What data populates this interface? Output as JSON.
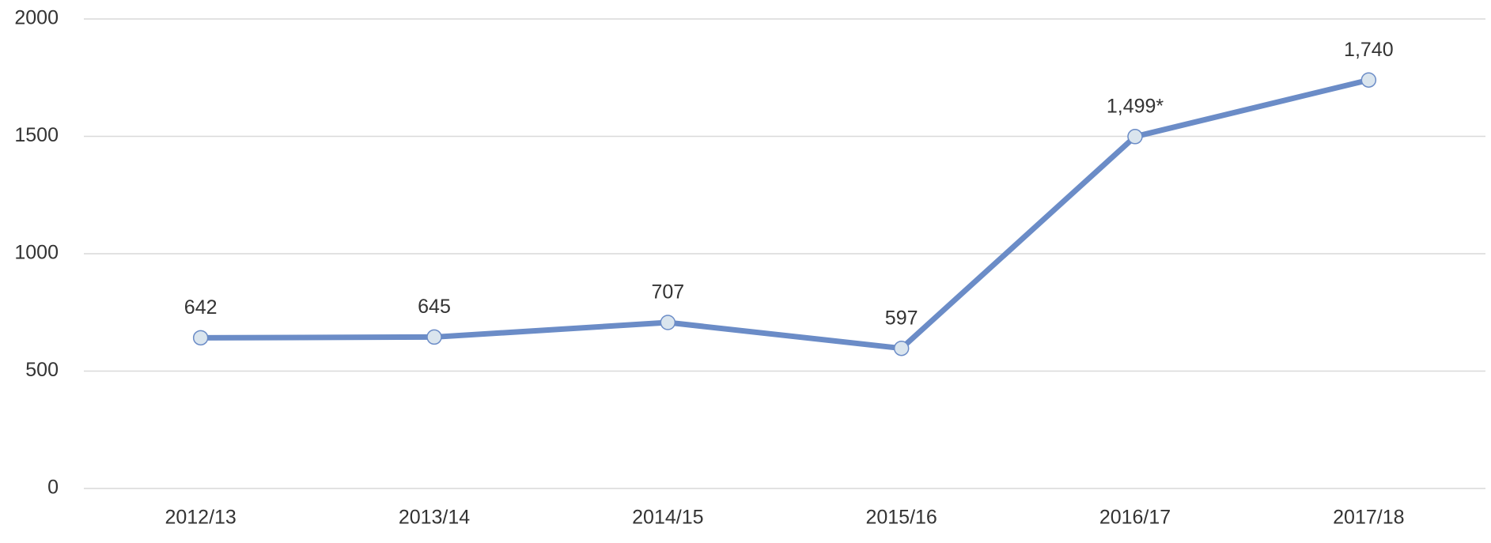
{
  "chart_data": {
    "type": "line",
    "categories": [
      "2012/13",
      "2013/14",
      "2014/15",
      "2015/16",
      "2016/17",
      "2017/18"
    ],
    "values": [
      642,
      645,
      707,
      597,
      1499,
      1740
    ],
    "value_labels": [
      "642",
      "645",
      "707",
      "597",
      "1,499*",
      "1,740"
    ],
    "color": "#6b8cc7",
    "marker_color": "#dae5ee",
    "ylim": [
      0,
      2000
    ],
    "yticks": [
      0,
      500,
      1000,
      1500,
      2000
    ],
    "grid": true
  }
}
